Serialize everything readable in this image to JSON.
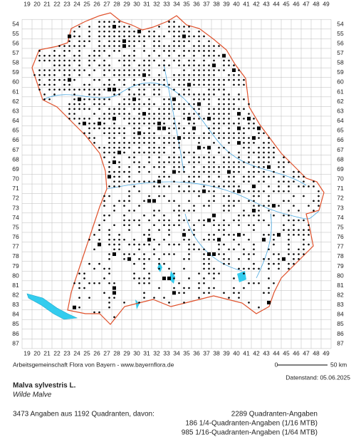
{
  "map": {
    "columns": [
      19,
      20,
      21,
      22,
      23,
      24,
      25,
      26,
      27,
      28,
      29,
      30,
      31,
      32,
      33,
      34,
      35,
      36,
      37,
      38,
      39,
      40,
      41,
      42,
      43,
      44,
      45,
      46,
      47,
      48,
      49
    ],
    "rows": [
      54,
      55,
      56,
      57,
      58,
      59,
      60,
      61,
      62,
      63,
      64,
      65,
      66,
      67,
      68,
      69,
      70,
      71,
      72,
      73,
      74,
      75,
      76,
      77,
      78,
      79,
      80,
      81,
      82,
      83,
      84,
      85,
      86,
      87
    ],
    "credit": "Arbeitsgemeinschaft Flora von Bayern - www.bayernflora.de",
    "scale_start": "0",
    "scale_end": "50 km",
    "data_date": "Datenstand: 05.06.2025",
    "species": "Malva sylvestris L.",
    "common_name": "Wilde Malve",
    "summary": "3473 Angaben aus 1192 Quadranten, davon:",
    "breakdown": [
      "2289 Quadranten-Angaben",
      "186 1/4-Quadranten-Angaben (1/16 MTB)",
      "985 1/16-Quadranten-Angaben (1/64 MTB)"
    ]
  }
}
